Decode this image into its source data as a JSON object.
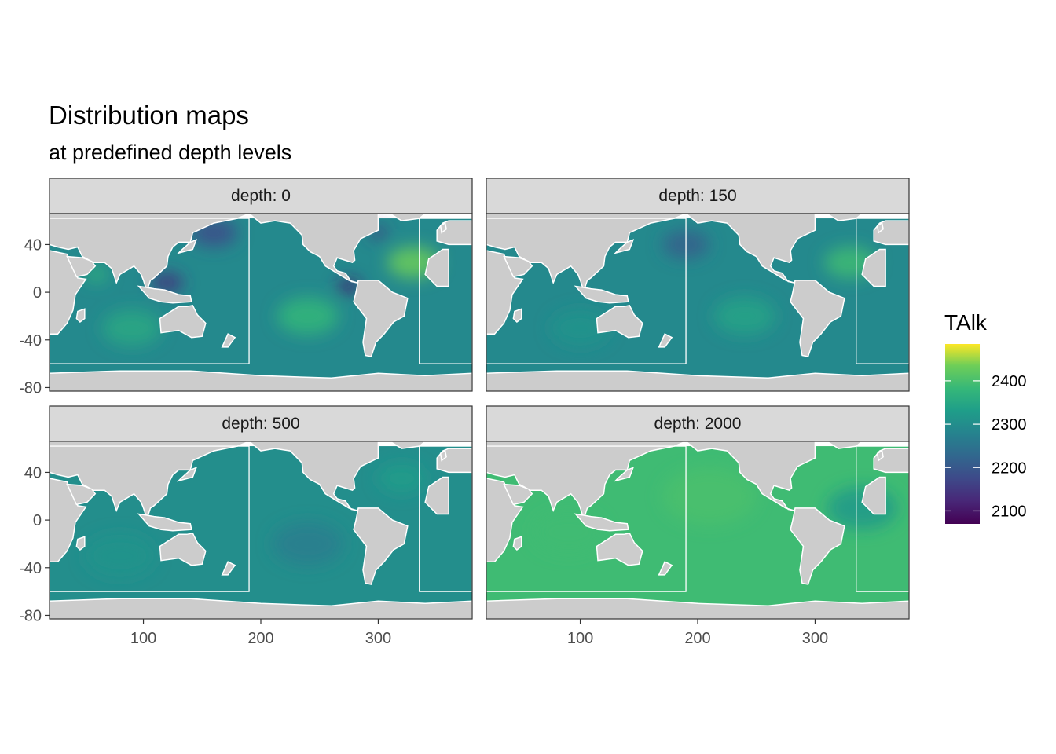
{
  "chart_data": {
    "type": "heatmap",
    "title": "Distribution maps",
    "subtitle": "at predefined depth levels",
    "facet_label_prefix": "depth: ",
    "facets": [
      {
        "depth": 0,
        "label": "depth: 0"
      },
      {
        "depth": 150,
        "label": "depth: 150"
      },
      {
        "depth": 500,
        "label": "depth: 500"
      },
      {
        "depth": 2000,
        "label": "depth: 2000"
      }
    ],
    "x_ticks": [
      100,
      200,
      300
    ],
    "x_tick_labels": [
      "100",
      "200",
      "300"
    ],
    "y_ticks": [
      40,
      0,
      -40,
      -80
    ],
    "y_tick_labels": [
      "40",
      "0",
      "-40",
      "-80"
    ],
    "xlim": [
      20,
      380
    ],
    "ylim": [
      -83,
      66
    ],
    "legend": {
      "title": "TAlk",
      "breaks": [
        2400,
        2300,
        2200,
        2100
      ],
      "break_labels": [
        "2400",
        "2300",
        "2200",
        "2100"
      ],
      "limits": [
        2070,
        2485
      ],
      "position": "right",
      "palette": "viridis"
    },
    "land_color": "#cccccc",
    "missing_color": "#ffffff",
    "region_outlines": [
      {
        "name": "pacific-box",
        "lon": [
          20,
          190
        ],
        "lat": [
          -60,
          62
        ]
      },
      {
        "name": "atlantic-box",
        "lon": [
          335,
          380
        ],
        "lat": [
          -60,
          62
        ]
      }
    ],
    "facet_mean_talk": [
      {
        "depth": 0,
        "value": 2290
      },
      {
        "depth": 150,
        "value": 2290
      },
      {
        "depth": 500,
        "value": 2300
      },
      {
        "depth": 2000,
        "value": 2390
      }
    ]
  }
}
